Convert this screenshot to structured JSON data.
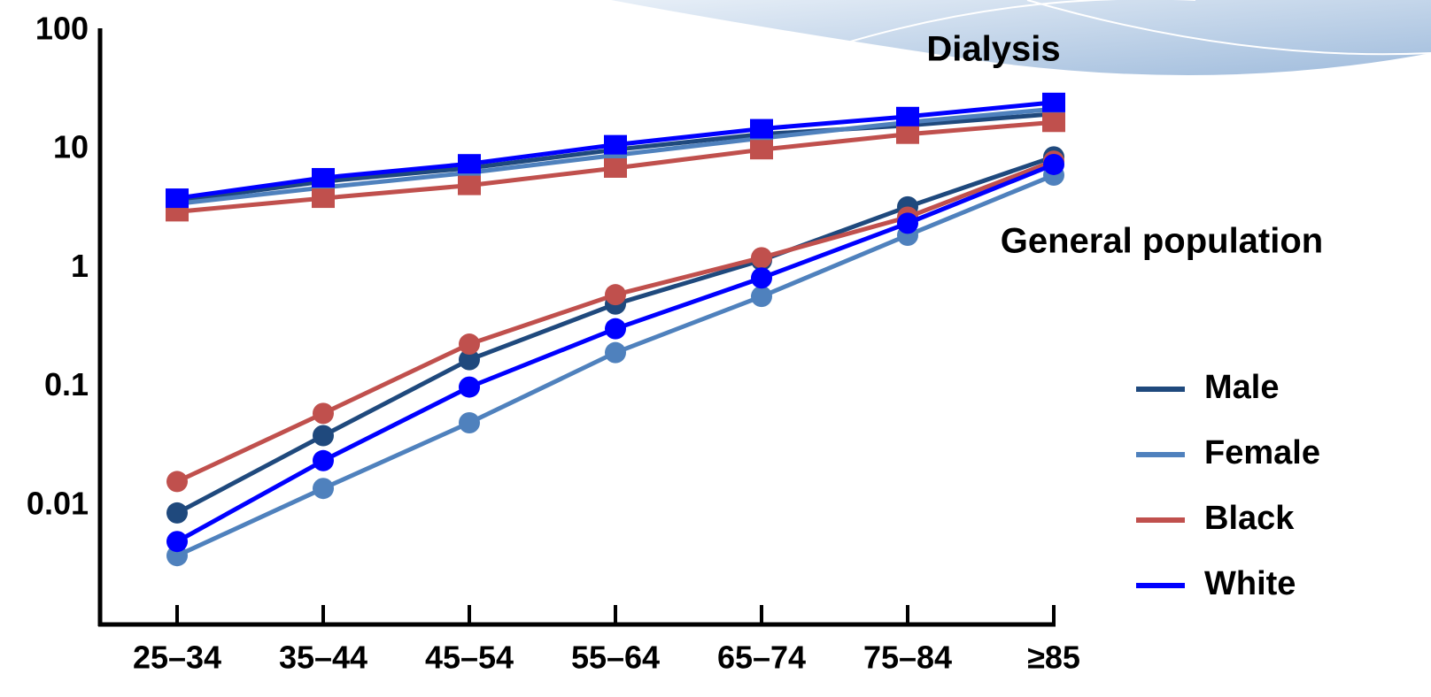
{
  "chart_data": {
    "type": "line",
    "annotations": {
      "dialysis": "Dialysis",
      "general": "General population"
    },
    "categories": [
      "25–34",
      "35–44",
      "45–54",
      "55–64",
      "65–74",
      "75–84",
      "≥85"
    ],
    "log_scale": true,
    "ylim": [
      0.001,
      100
    ],
    "yticks": [
      0.01,
      0.1,
      1,
      10,
      100
    ],
    "series": [
      {
        "name": "Male",
        "color": "#1f497d",
        "dialysis": [
          3.7,
          5.4,
          7.0,
          10,
          13.5,
          16,
          20
        ],
        "general": [
          0.0087,
          0.039,
          0.17,
          0.5,
          1.17,
          3.3,
          8.7
        ]
      },
      {
        "name": "Female",
        "color": "#4f81bd",
        "dialysis": [
          3.5,
          4.8,
          6.4,
          9,
          12.5,
          17,
          22
        ],
        "general": [
          0.0038,
          0.014,
          0.05,
          0.195,
          0.58,
          1.9,
          6.1
        ]
      },
      {
        "name": "Black",
        "color": "#c0504d",
        "dialysis": [
          3.0,
          3.9,
          5.0,
          7.0,
          10,
          13.5,
          17
        ],
        "general": [
          0.016,
          0.06,
          0.23,
          0.6,
          1.23,
          2.7,
          8
        ]
      },
      {
        "name": "White",
        "color": "#0000ff",
        "dialysis": [
          3.9,
          5.8,
          7.6,
          11,
          15,
          19,
          25
        ],
        "general": [
          0.005,
          0.024,
          0.1,
          0.31,
          0.83,
          2.4,
          7.5
        ]
      }
    ]
  }
}
